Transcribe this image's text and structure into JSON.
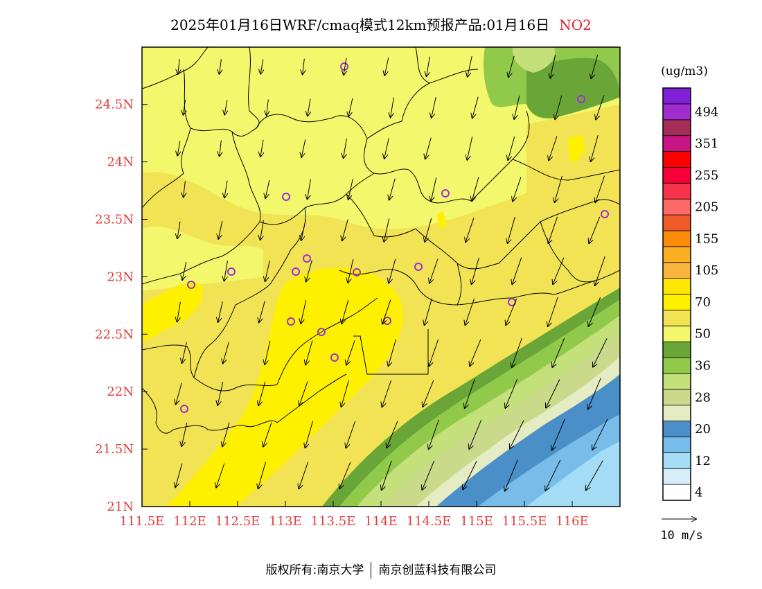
{
  "header": {
    "title_main": "2025年01月16日WRF/cmaq模式12km预报产品:01月16日",
    "pollutant": "NO2"
  },
  "map": {
    "lon_labels": [
      "111.5E",
      "112E",
      "112.5E",
      "113E",
      "113.5E",
      "114E",
      "114.5E",
      "115E",
      "115.5E",
      "116E"
    ],
    "lat_labels": [
      "21N",
      "21.5N",
      "22N",
      "22.5N",
      "23N",
      "23.5N",
      "24N",
      "24.5N"
    ],
    "label_color": "#e33b3b"
  },
  "legend": {
    "unit": "(ug/m3)",
    "colors": [
      "#ffffff",
      "#d7eefa",
      "#a5dcf5",
      "#78bde9",
      "#4a8fc8",
      "#e5ecc4",
      "#cad98a",
      "#c3e07a",
      "#91c94a",
      "#6aa637",
      "#f3f76b",
      "#f2e355",
      "#fff000",
      "#fde600",
      "#f8b43c",
      "#fcae21",
      "#fa8c09",
      "#f05a28",
      "#fe6866",
      "#f8334e",
      "#f70138",
      "#fe0000",
      "#c71585",
      "#a52d5a",
      "#a02dd0",
      "#8020d8"
    ],
    "labels": [
      "4",
      "12",
      "20",
      "28",
      "36",
      "50",
      "70",
      "105",
      "155",
      "205",
      "255",
      "351",
      "494"
    ],
    "vector_ref": "10 m/s"
  },
  "footer": {
    "copyright": "版权所有:南京大学",
    "company": "南京创蓝科技有限公司"
  }
}
